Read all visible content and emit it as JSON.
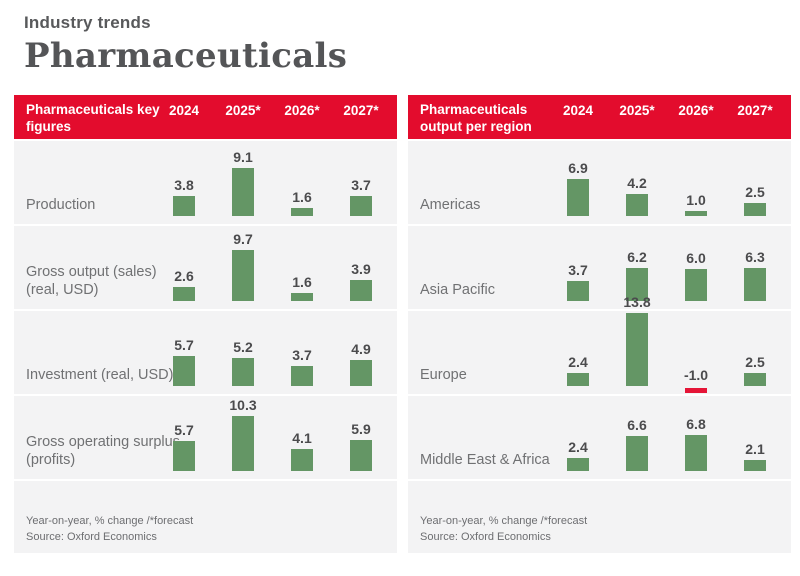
{
  "header": {
    "eyebrow": "Industry trends",
    "title": "Pharmaceuticals"
  },
  "colors": {
    "accent_red": "#e30c2d",
    "bar_green": "#649665",
    "bar_negative_red": "#e51537",
    "panel_bg": "#f3f3f4",
    "title_text": "#545557",
    "label_gray": "#707173",
    "value_text": "#4b4b4d"
  },
  "chart_data": [
    {
      "type": "bar",
      "title": "Pharmaceuticals key figures",
      "columns": [
        "2024",
        "2025*",
        "2026*",
        "2027*"
      ],
      "categories": [
        "Production",
        "Gross output (sales) (real, USD)",
        "Investment (real, USD)",
        "Gross operating surplus (profits)"
      ],
      "series": [
        {
          "name": "2024",
          "values": [
            3.8,
            2.6,
            5.7,
            5.7
          ]
        },
        {
          "name": "2025*",
          "values": [
            9.1,
            9.7,
            5.2,
            10.3
          ]
        },
        {
          "name": "2026*",
          "values": [
            1.6,
            1.6,
            3.7,
            4.1
          ]
        },
        {
          "name": "2027*",
          "values": [
            3.7,
            3.9,
            4.9,
            5.9
          ]
        }
      ],
      "ylim": [
        -1.5,
        14
      ],
      "legend_position": "none",
      "grid": false,
      "footnote": "Year-on-year, % change /*forecast",
      "source": "Source: Oxford Economics"
    },
    {
      "type": "bar",
      "title": "Pharmaceuticals output per region",
      "columns": [
        "2024",
        "2025*",
        "2026*",
        "2027*"
      ],
      "categories": [
        "Americas",
        "Asia Pacific",
        "Europe",
        "Middle East & Africa"
      ],
      "series": [
        {
          "name": "2024",
          "values": [
            6.9,
            3.7,
            2.4,
            2.4
          ]
        },
        {
          "name": "2025*",
          "values": [
            4.2,
            6.2,
            13.8,
            6.6
          ]
        },
        {
          "name": "2026*",
          "values": [
            1.0,
            6.0,
            -1.0,
            6.8
          ]
        },
        {
          "name": "2027*",
          "values": [
            2.5,
            6.3,
            2.5,
            2.1
          ]
        }
      ],
      "ylim": [
        -1.5,
        14
      ],
      "legend_position": "none",
      "grid": false,
      "footnote": "Year-on-year, % change /*forecast",
      "source": "Source: Oxford Economics"
    }
  ]
}
